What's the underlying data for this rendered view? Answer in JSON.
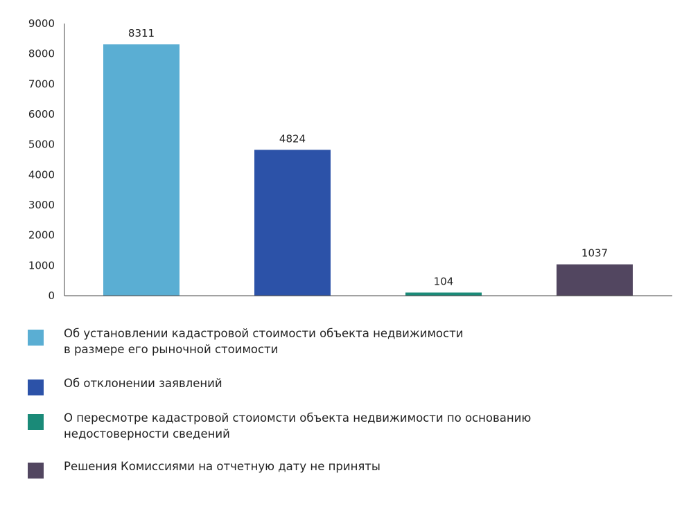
{
  "chart_data": {
    "type": "bar",
    "title": "",
    "xlabel": "",
    "ylabel": "",
    "ylim": [
      0,
      9000
    ],
    "yticks": [
      0,
      1000,
      2000,
      3000,
      4000,
      5000,
      6000,
      7000,
      8000,
      9000
    ],
    "grid": false,
    "legend_position": "bottom",
    "categories": [
      "Об установлении кадастровой стоимости объекта недвижимости в размере его рыночной стоимости",
      "Об отклонении заявлений",
      "О пересмотре кадастровой стоиомсти объекта недвижимости по основанию недостоверности сведений",
      "Решения Комиссиями на отчетную дату не приняты"
    ],
    "values": [
      8311,
      4824,
      104,
      1037
    ],
    "colors": [
      "#5aaed3",
      "#2c52a8",
      "#1a8a78",
      "#524660"
    ]
  },
  "legend": {
    "items": [
      {
        "line1": "Об установлении кадастровой стоимости объекта недвижимости",
        "line2": "в размере его рыночной стоимости"
      },
      {
        "line1": "Об отклонении заявлений",
        "line2": ""
      },
      {
        "line1": "О пересмотре кадастровой стоиомсти объекта недвижимости по основанию",
        "line2": "недостоверности сведений"
      },
      {
        "line1": "Решения Комиссиями на отчетную дату не приняты",
        "line2": ""
      }
    ]
  }
}
